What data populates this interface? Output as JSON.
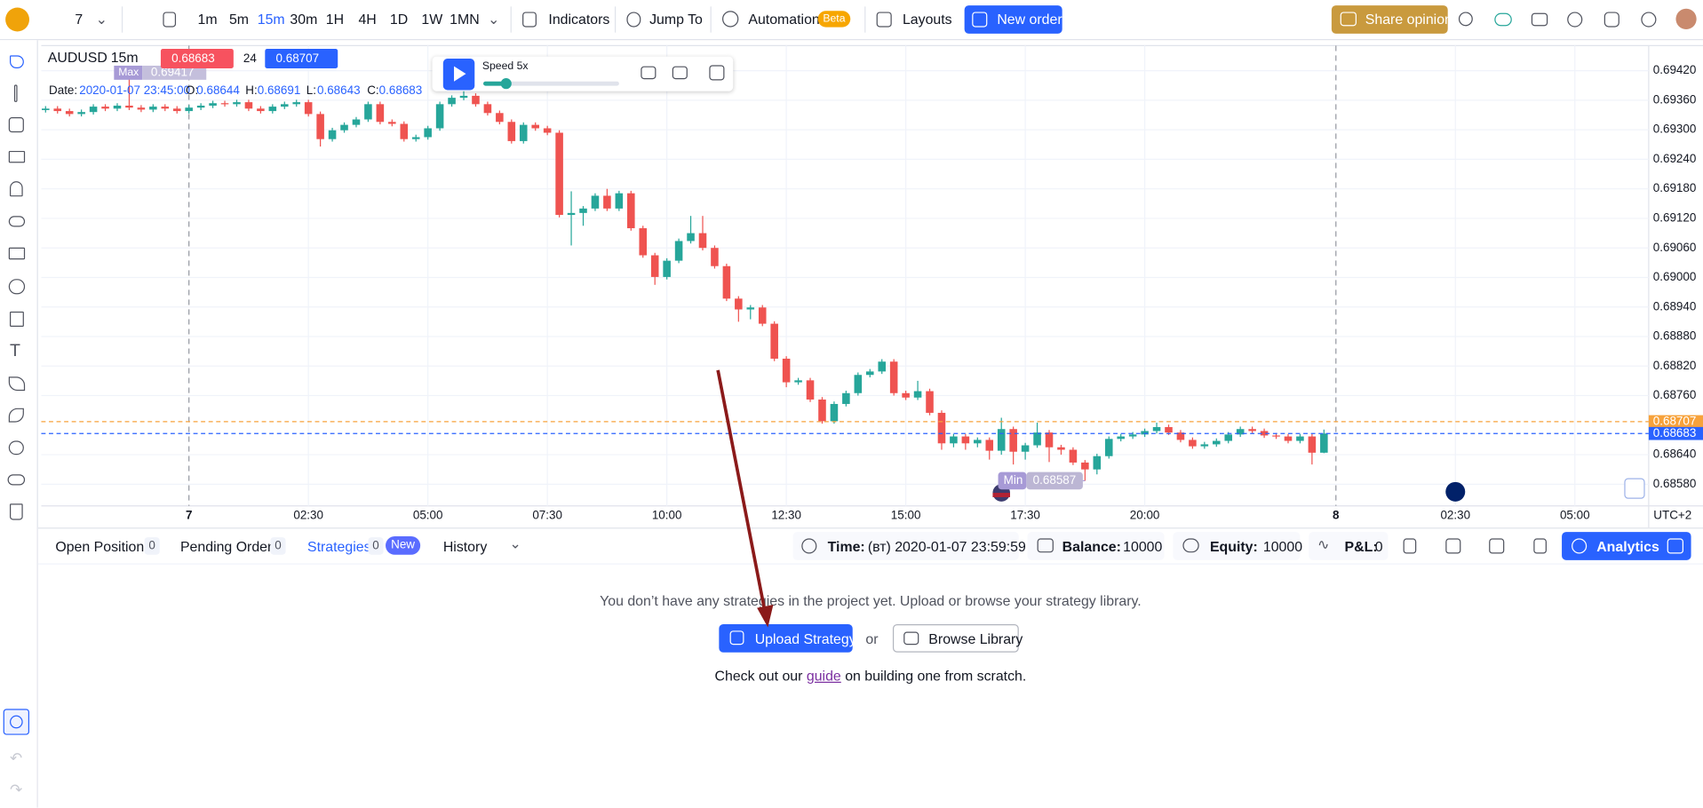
{
  "toolbar": {
    "symbol_count": "7",
    "timeframes": [
      "1m",
      "5m",
      "15m",
      "30m",
      "1H",
      "4H",
      "1D",
      "1W",
      "1MN"
    ],
    "active_timeframe": "15m",
    "indicators": "Indicators",
    "jump_to": "Jump To",
    "automation": "Automation",
    "beta": "Beta",
    "layouts": "Layouts",
    "new_order": "New order",
    "share_opinion": "Share opinion"
  },
  "chart_data": {
    "type": "candlestick",
    "symbol": "AUDUSD",
    "interval": "15m",
    "bid": 0.68683,
    "spread": 24,
    "ask": 0.68707,
    "info": {
      "date_label": "Date:",
      "date": "2020-01-07 23:45:00",
      "o_label": "O:",
      "o": 0.68644,
      "h_label": "H:",
      "h": 0.68691,
      "l_label": "L:",
      "l": 0.68643,
      "c_label": "C:",
      "c": 0.68683
    },
    "max_label": "Max",
    "max": 0.69417,
    "min_label": "Min",
    "min": 0.68587,
    "speed": "Speed 5x",
    "timezone": "UTC+2",
    "up_color": "#26a69a",
    "down_color": "#ef5350",
    "bid_color": "#2962ff",
    "ask_color": "#f7a23b",
    "grid": true,
    "ylim": [
      0.68536,
      0.69471
    ],
    "yticks": [
      {
        "value": 0.6942,
        "label": "0.69420"
      },
      {
        "value": 0.6936,
        "label": "0.69360"
      },
      {
        "value": 0.693,
        "label": "0.69300"
      },
      {
        "value": 0.6924,
        "label": "0.69240"
      },
      {
        "value": 0.6918,
        "label": "0.69180"
      },
      {
        "value": 0.6912,
        "label": "0.69120"
      },
      {
        "value": 0.6906,
        "label": "0.69060"
      },
      {
        "value": 0.69,
        "label": "0.69000"
      },
      {
        "value": 0.6894,
        "label": "0.68940"
      },
      {
        "value": 0.6888,
        "label": "0.68880"
      },
      {
        "value": 0.6882,
        "label": "0.68820"
      },
      {
        "value": 0.6876,
        "label": "0.68760"
      },
      {
        "value": 0.6864,
        "label": "0.68640"
      },
      {
        "value": 0.6858,
        "label": "0.68580"
      }
    ],
    "xlim": [
      -0.36,
      134.18
    ],
    "xticks": [
      {
        "value": 12,
        "label": "7"
      },
      {
        "value": 22,
        "label": "02:30"
      },
      {
        "value": 32,
        "label": "05:00"
      },
      {
        "value": 42,
        "label": "07:30"
      },
      {
        "value": 52,
        "label": "10:00"
      },
      {
        "value": 62,
        "label": "12:30"
      },
      {
        "value": 72,
        "label": "15:00"
      },
      {
        "value": 82,
        "label": "17:30"
      },
      {
        "value": 92,
        "label": "20:00"
      },
      {
        "value": 108,
        "label": "8"
      },
      {
        "value": 118,
        "label": "02:30"
      },
      {
        "value": 128,
        "label": "05:00"
      }
    ],
    "candles": [
      [
        0.6934,
        0.69348,
        0.69335,
        0.69343
      ],
      [
        0.69343,
        0.69348,
        0.69333,
        0.69338
      ],
      [
        0.69338,
        0.69343,
        0.69327,
        0.69332
      ],
      [
        0.69332,
        0.69341,
        0.69327,
        0.69336
      ],
      [
        0.69336,
        0.69352,
        0.69331,
        0.69347
      ],
      [
        0.69347,
        0.69352,
        0.69338,
        0.69343
      ],
      [
        0.69343,
        0.69354,
        0.69338,
        0.69349
      ],
      [
        0.69349,
        0.69417,
        0.6934,
        0.69345
      ],
      [
        0.69345,
        0.6935,
        0.69336,
        0.69341
      ],
      [
        0.69341,
        0.69352,
        0.69336,
        0.69347
      ],
      [
        0.69347,
        0.69352,
        0.69338,
        0.69343
      ],
      [
        0.69343,
        0.69348,
        0.69333,
        0.69338
      ],
      [
        0.69338,
        0.6935,
        0.69333,
        0.69345
      ],
      [
        0.69345,
        0.69354,
        0.6934,
        0.69349
      ],
      [
        0.69349,
        0.69359,
        0.69344,
        0.69354
      ],
      [
        0.69354,
        0.69359,
        0.69347,
        0.69352
      ],
      [
        0.69352,
        0.69361,
        0.69347,
        0.69356
      ],
      [
        0.69356,
        0.69361,
        0.69338,
        0.69343
      ],
      [
        0.69343,
        0.69348,
        0.69333,
        0.69338
      ],
      [
        0.69338,
        0.69352,
        0.69333,
        0.69347
      ],
      [
        0.69347,
        0.69357,
        0.69342,
        0.69352
      ],
      [
        0.69352,
        0.69361,
        0.69347,
        0.69356
      ],
      [
        0.69356,
        0.69361,
        0.69327,
        0.69332
      ],
      [
        0.69332,
        0.69337,
        0.69266,
        0.69281
      ],
      [
        0.69281,
        0.69304,
        0.69276,
        0.69299
      ],
      [
        0.69299,
        0.69315,
        0.69294,
        0.6931
      ],
      [
        0.6931,
        0.69326,
        0.69305,
        0.69321
      ],
      [
        0.69321,
        0.69357,
        0.69316,
        0.69352
      ],
      [
        0.69352,
        0.69357,
        0.69311,
        0.69316
      ],
      [
        0.69316,
        0.69321,
        0.69307,
        0.69312
      ],
      [
        0.69312,
        0.69317,
        0.69276,
        0.69281
      ],
      [
        0.69281,
        0.6929,
        0.69276,
        0.69285
      ],
      [
        0.69285,
        0.69308,
        0.6928,
        0.69303
      ],
      [
        0.69303,
        0.69357,
        0.69298,
        0.69352
      ],
      [
        0.69352,
        0.6937,
        0.69347,
        0.69365
      ],
      [
        0.69365,
        0.6938,
        0.6936,
        0.69369
      ],
      [
        0.69369,
        0.69374,
        0.69347,
        0.69352
      ],
      [
        0.69352,
        0.69357,
        0.69329,
        0.69334
      ],
      [
        0.69334,
        0.69339,
        0.69311,
        0.69316
      ],
      [
        0.69316,
        0.69321,
        0.69272,
        0.69277
      ],
      [
        0.69277,
        0.69315,
        0.69272,
        0.6931
      ],
      [
        0.6931,
        0.69315,
        0.69298,
        0.69303
      ],
      [
        0.69303,
        0.69308,
        0.69289,
        0.69294
      ],
      [
        0.69294,
        0.69299,
        0.69122,
        0.69127
      ],
      [
        0.69127,
        0.69175,
        0.69065,
        0.69131
      ],
      [
        0.69131,
        0.69145,
        0.69105,
        0.6914
      ],
      [
        0.6914,
        0.69171,
        0.69135,
        0.69166
      ],
      [
        0.69166,
        0.6918,
        0.69135,
        0.6914
      ],
      [
        0.6914,
        0.69176,
        0.69135,
        0.69171
      ],
      [
        0.69171,
        0.69176,
        0.69095,
        0.691
      ],
      [
        0.691,
        0.69105,
        0.6904,
        0.69045
      ],
      [
        0.69045,
        0.6905,
        0.68985,
        0.69001
      ],
      [
        0.69001,
        0.69039,
        0.68996,
        0.69034
      ],
      [
        0.69034,
        0.69079,
        0.69029,
        0.69074
      ],
      [
        0.69074,
        0.69125,
        0.69069,
        0.6909
      ],
      [
        0.6909,
        0.69125,
        0.69055,
        0.6906
      ],
      [
        0.6906,
        0.69065,
        0.69018,
        0.69023
      ],
      [
        0.69023,
        0.69028,
        0.68952,
        0.68957
      ],
      [
        0.68957,
        0.68962,
        0.6891,
        0.68935
      ],
      [
        0.68935,
        0.68944,
        0.68915,
        0.68939
      ],
      [
        0.68939,
        0.68944,
        0.68901,
        0.68906
      ],
      [
        0.68906,
        0.68911,
        0.6883,
        0.68835
      ],
      [
        0.68835,
        0.6884,
        0.68777,
        0.68787
      ],
      [
        0.68787,
        0.68796,
        0.68782,
        0.68791
      ],
      [
        0.68791,
        0.68796,
        0.68747,
        0.68752
      ],
      [
        0.68752,
        0.68757,
        0.68703,
        0.68708
      ],
      [
        0.68708,
        0.68748,
        0.68703,
        0.68743
      ],
      [
        0.68743,
        0.6877,
        0.68738,
        0.68765
      ],
      [
        0.68765,
        0.68807,
        0.6876,
        0.68802
      ],
      [
        0.68802,
        0.68814,
        0.68797,
        0.68809
      ],
      [
        0.68809,
        0.68834,
        0.68804,
        0.68829
      ],
      [
        0.68829,
        0.68834,
        0.6876,
        0.68765
      ],
      [
        0.68765,
        0.6877,
        0.68751,
        0.68756
      ],
      [
        0.68756,
        0.6879,
        0.68751,
        0.68769
      ],
      [
        0.68769,
        0.68774,
        0.6872,
        0.68725
      ],
      [
        0.68725,
        0.6873,
        0.6865,
        0.68663
      ],
      [
        0.68663,
        0.68682,
        0.68655,
        0.68677
      ],
      [
        0.68677,
        0.68682,
        0.6865,
        0.68663
      ],
      [
        0.68663,
        0.68675,
        0.68655,
        0.6867
      ],
      [
        0.6867,
        0.68675,
        0.6863,
        0.68648
      ],
      [
        0.68648,
        0.68715,
        0.6864,
        0.68692
      ],
      [
        0.68692,
        0.68697,
        0.6862,
        0.68646
      ],
      [
        0.68646,
        0.68664,
        0.6863,
        0.68659
      ],
      [
        0.68659,
        0.68705,
        0.68654,
        0.68685
      ],
      [
        0.68685,
        0.6869,
        0.68625,
        0.68655
      ],
      [
        0.68655,
        0.6866,
        0.6864,
        0.6865
      ],
      [
        0.6865,
        0.68655,
        0.68619,
        0.68624
      ],
      [
        0.68624,
        0.68629,
        0.68587,
        0.6861
      ],
      [
        0.6861,
        0.68642,
        0.686,
        0.68637
      ],
      [
        0.68637,
        0.68677,
        0.68632,
        0.68672
      ],
      [
        0.68672,
        0.68682,
        0.68667,
        0.68677
      ],
      [
        0.68677,
        0.68686,
        0.68672,
        0.68681
      ],
      [
        0.68681,
        0.68693,
        0.68676,
        0.68688
      ],
      [
        0.68688,
        0.68705,
        0.68683,
        0.68696
      ],
      [
        0.68696,
        0.68701,
        0.6868,
        0.68685
      ],
      [
        0.68685,
        0.6869,
        0.68665,
        0.6867
      ],
      [
        0.6867,
        0.68675,
        0.68652,
        0.68657
      ],
      [
        0.68657,
        0.68666,
        0.68652,
        0.68661
      ],
      [
        0.68661,
        0.68673,
        0.68656,
        0.68668
      ],
      [
        0.68668,
        0.68686,
        0.68663,
        0.68681
      ],
      [
        0.68681,
        0.68697,
        0.68676,
        0.68692
      ],
      [
        0.68692,
        0.68697,
        0.68683,
        0.68688
      ],
      [
        0.68688,
        0.68693,
        0.68674,
        0.68679
      ],
      [
        0.68679,
        0.68684,
        0.68672,
        0.68677
      ],
      [
        0.68677,
        0.68682,
        0.68663,
        0.68668
      ],
      [
        0.68668,
        0.68682,
        0.68663,
        0.68677
      ],
      [
        0.68677,
        0.68682,
        0.6862,
        0.68644
      ],
      [
        0.68644,
        0.68691,
        0.68643,
        0.68683
      ]
    ]
  },
  "panel": {
    "tabs": [
      {
        "name": "Open Positions",
        "count": 0
      },
      {
        "name": "Pending Orders",
        "count": 0
      },
      {
        "name": "Strategies",
        "count": 0,
        "badge": "New"
      },
      {
        "name": "History"
      }
    ],
    "active_tab": "Strategies",
    "time_label": "Time:",
    "time": "(вт) 2020-01-07 23:59:59",
    "balance_label": "Balance:",
    "balance": 10000,
    "equity_label": "Equity:",
    "equity": 10000,
    "pnl_label": "P&L:",
    "pnl": 0,
    "analytics": "Analytics"
  },
  "empty_state": {
    "message": "You don’t have any strategies in the project yet. Upload or browse your strategy library.",
    "upload": "Upload Strategy",
    "or": "or",
    "browse": "Browse Library",
    "hint_before": "Check out our",
    "link": "guide",
    "hint_after": "on building one from scratch."
  }
}
